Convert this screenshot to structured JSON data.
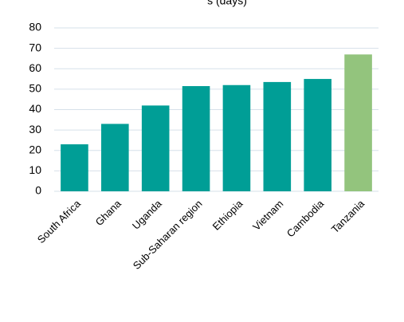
{
  "chart_data": {
    "type": "bar",
    "title": "s (days)",
    "categories": [
      "South Africa",
      "Ghana",
      "Uganda",
      "Sub-Saharan region",
      "Ethiopia",
      "Vietnam",
      "Cambodia",
      "Tanzania"
    ],
    "values": [
      23,
      33,
      42,
      51.5,
      52,
      53.5,
      55,
      67
    ],
    "colors": [
      "#009e96",
      "#009e96",
      "#009e96",
      "#009e96",
      "#009e96",
      "#009e96",
      "#009e96",
      "#93c47d"
    ],
    "ylim": [
      0,
      80
    ],
    "yticks": [
      0,
      10,
      20,
      30,
      40,
      50,
      60,
      70,
      80
    ],
    "grid": true
  }
}
